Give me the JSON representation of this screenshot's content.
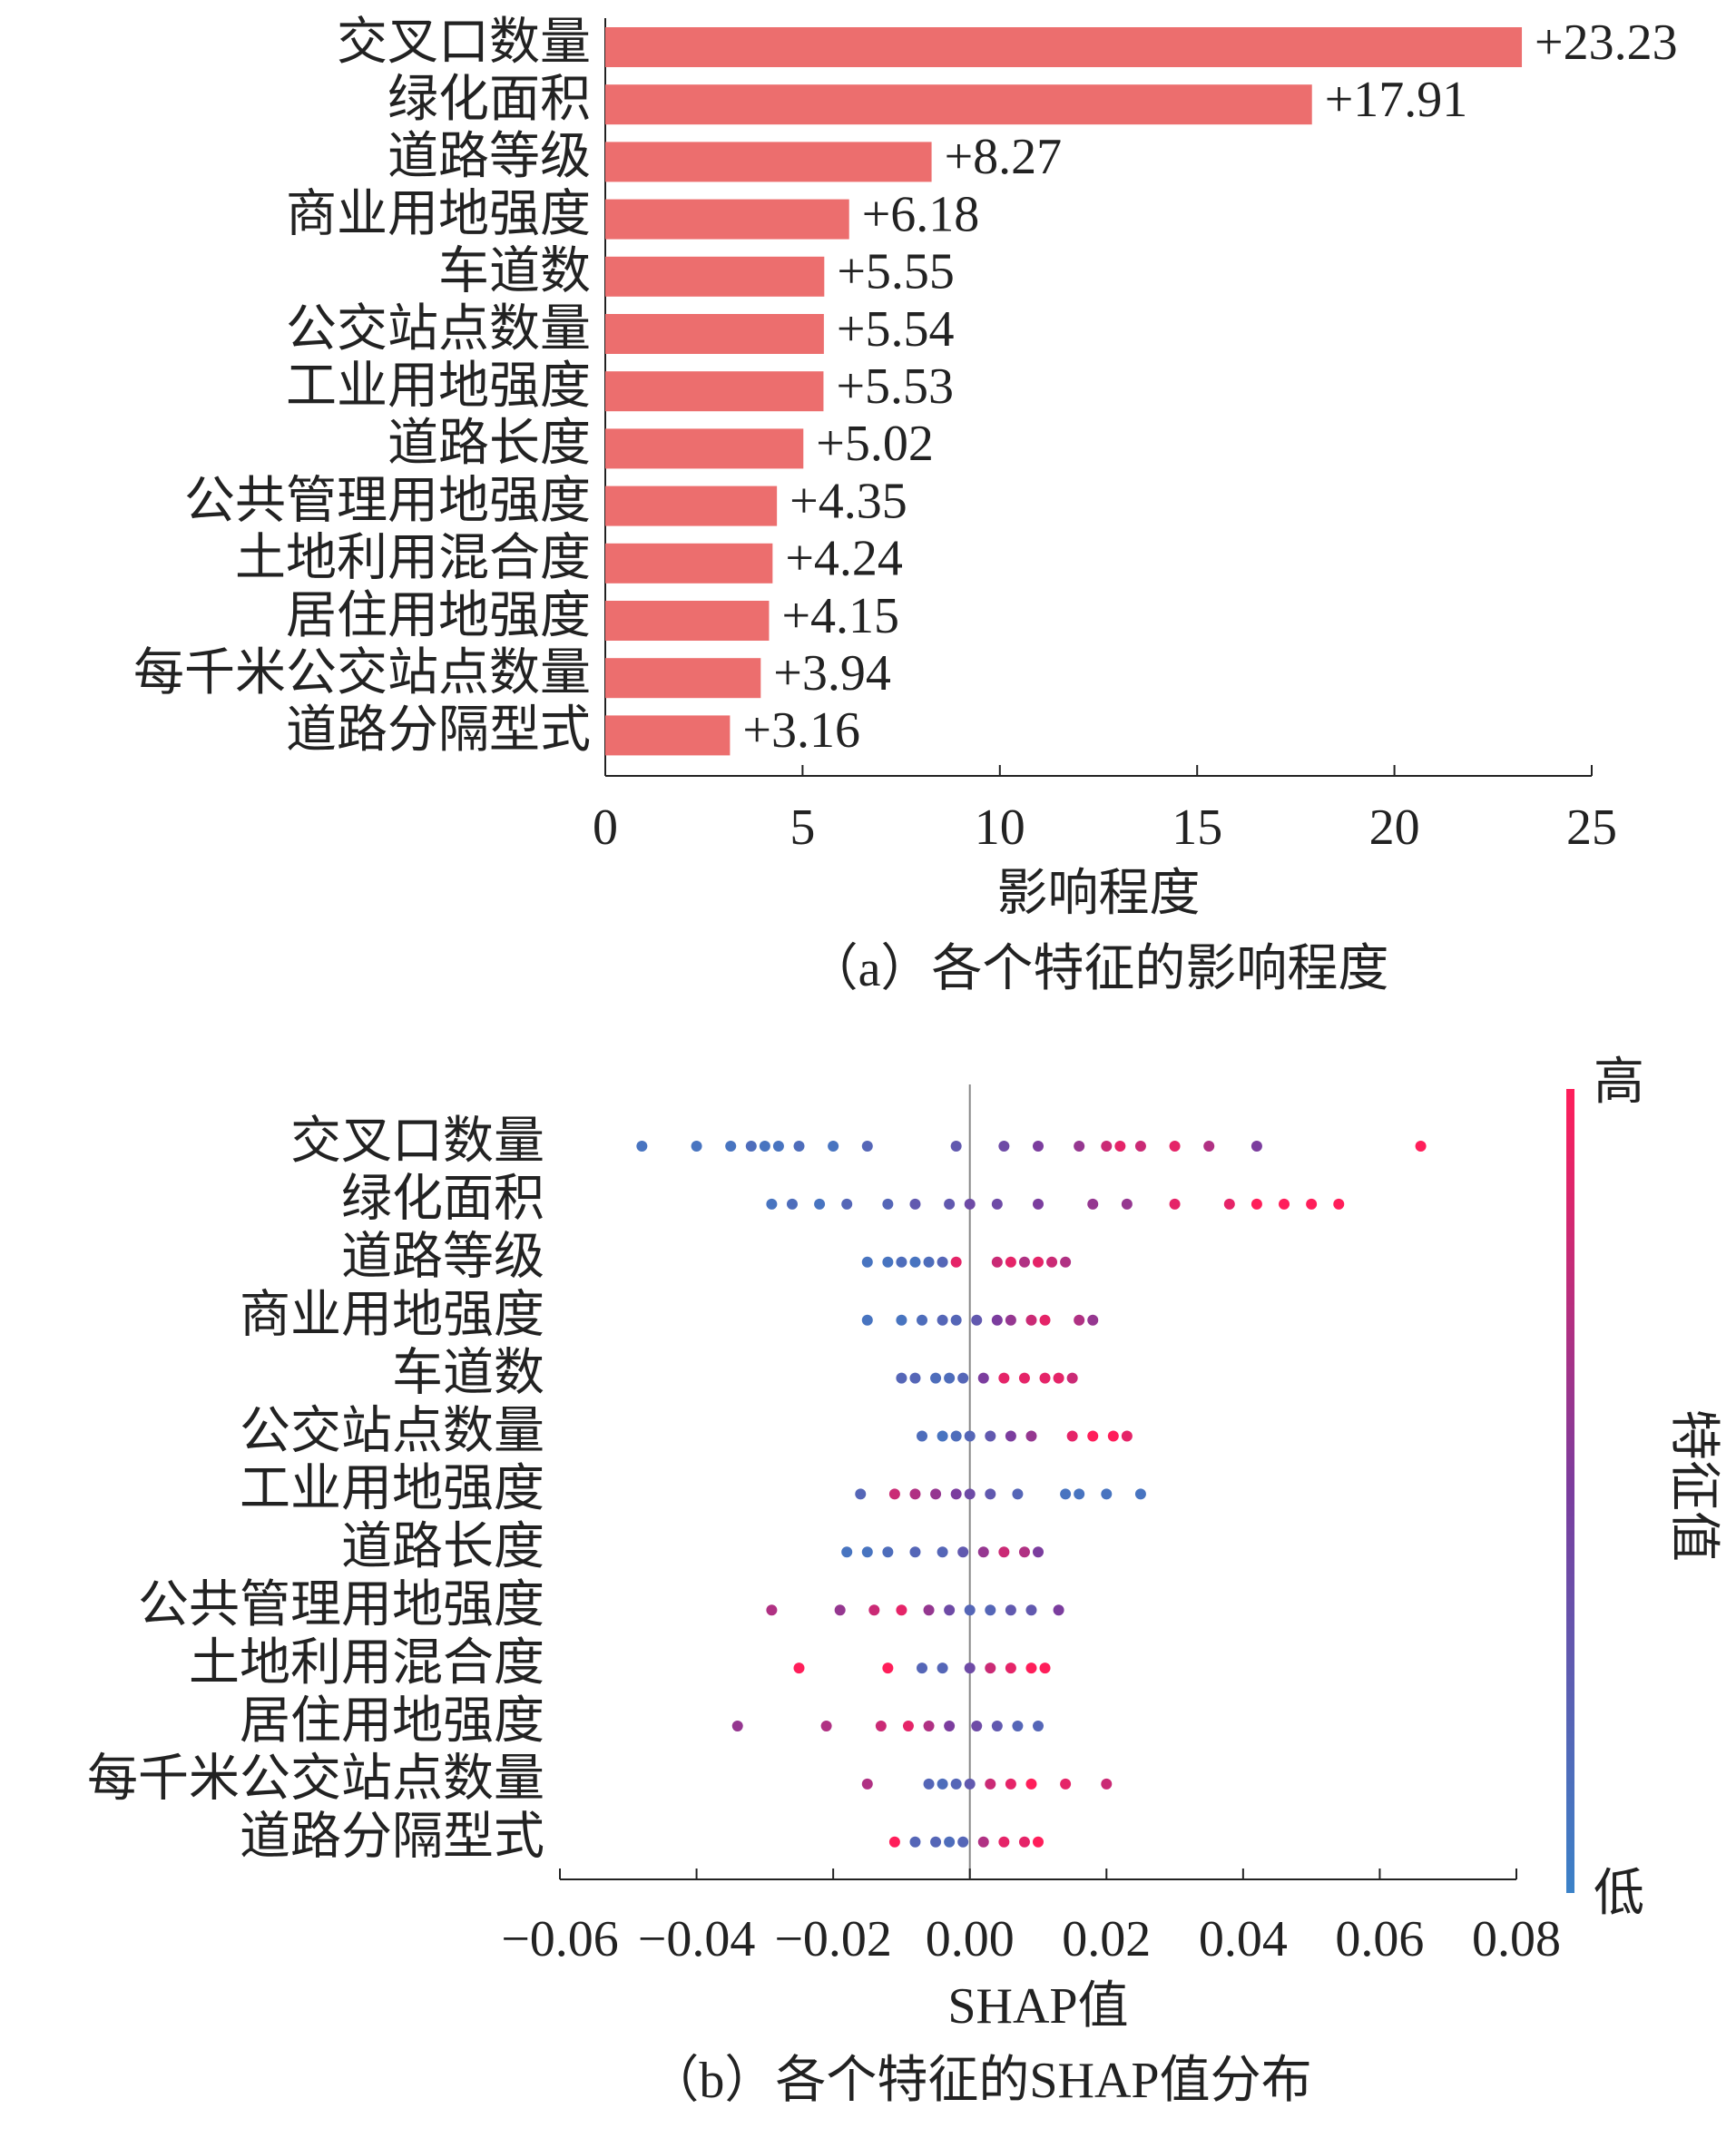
{
  "chart_data": [
    {
      "type": "bar",
      "orientation": "horizontal",
      "categories": [
        "交叉口数量",
        "绿化面积",
        "道路等级",
        "商业用地强度",
        "车道数",
        "公交站点数量",
        "工业用地强度",
        "道路长度",
        "公共管理用地强度",
        "土地利用混合度",
        "居住用地强度",
        "每千米公交站点数量",
        "道路分隔型式"
      ],
      "values": [
        23.23,
        17.91,
        8.27,
        6.18,
        5.55,
        5.54,
        5.53,
        5.02,
        4.35,
        4.24,
        4.15,
        3.94,
        3.16
      ],
      "value_labels": [
        "+23.23",
        "+17.91",
        "+8.27",
        "+6.18",
        "+5.55",
        "+5.54",
        "+5.53",
        "+5.02",
        "+4.35",
        "+4.24",
        "+4.15",
        "+3.94",
        "+3.16"
      ],
      "color": "#ec6e6e",
      "xlim": [
        0,
        25
      ],
      "xticks": [
        0,
        5,
        10,
        15,
        20,
        25
      ],
      "xlabel": "影响程度",
      "caption": "（a）各个特征的影响程度"
    },
    {
      "type": "beeswarm",
      "categories": [
        "交叉口数量",
        "绿化面积",
        "道路等级",
        "商业用地强度",
        "车道数",
        "公交站点数量",
        "工业用地强度",
        "道路长度",
        "公共管理用地强度",
        "土地利用混合度",
        "居住用地强度",
        "每千米公交站点数量",
        "道路分隔型式"
      ],
      "values": [
        [
          -0.048,
          -0.04,
          -0.035,
          -0.032,
          -0.03,
          -0.028,
          -0.025,
          -0.02,
          -0.015,
          -0.002,
          0.005,
          0.01,
          0.016,
          0.02,
          0.022,
          0.025,
          0.03,
          0.035,
          0.042,
          0.066
        ],
        [
          -0.029,
          -0.026,
          -0.022,
          -0.018,
          -0.012,
          -0.008,
          -0.003,
          0,
          0.004,
          0.01,
          0.018,
          0.023,
          0.03,
          0.038,
          0.042,
          0.046,
          0.05,
          0.054
        ],
        [
          -0.015,
          -0.012,
          -0.01,
          -0.008,
          -0.006,
          -0.004,
          -0.002,
          0.004,
          0.006,
          0.008,
          0.01,
          0.012,
          0.014
        ],
        [
          -0.015,
          -0.01,
          -0.007,
          -0.004,
          -0.002,
          0.001,
          0.004,
          0.006,
          0.009,
          0.011,
          0.016,
          0.018
        ],
        [
          -0.01,
          -0.008,
          -0.005,
          -0.003,
          -0.001,
          0.002,
          0.005,
          0.008,
          0.011,
          0.013,
          0.015
        ],
        [
          -0.007,
          -0.004,
          -0.002,
          0,
          0.003,
          0.006,
          0.009,
          0.015,
          0.018,
          0.021,
          0.023
        ],
        [
          -0.016,
          -0.011,
          -0.008,
          -0.005,
          -0.002,
          0,
          0.003,
          0.007,
          0.014,
          0.016,
          0.02,
          0.025
        ],
        [
          -0.018,
          -0.015,
          -0.012,
          -0.008,
          -0.004,
          -0.001,
          0.002,
          0.005,
          0.008,
          0.01
        ],
        [
          -0.029,
          -0.019,
          -0.014,
          -0.01,
          -0.006,
          -0.003,
          0,
          0.003,
          0.006,
          0.009,
          0.013
        ],
        [
          -0.025,
          -0.012,
          -0.007,
          -0.004,
          0,
          0.003,
          0.006,
          0.009,
          0.011
        ],
        [
          -0.034,
          -0.021,
          -0.013,
          -0.009,
          -0.006,
          -0.003,
          0.001,
          0.004,
          0.007,
          0.01
        ],
        [
          -0.015,
          -0.006,
          -0.004,
          -0.002,
          0,
          0.003,
          0.006,
          0.009,
          0.014,
          0.02
        ],
        [
          -0.011,
          -0.008,
          -0.005,
          -0.003,
          -0.001,
          0.002,
          0.005,
          0.008,
          0.01
        ]
      ],
      "feature_values": [
        [
          0.1,
          0.1,
          0.1,
          0.15,
          0.1,
          0.1,
          0.15,
          0.1,
          0.2,
          0.3,
          0.4,
          0.5,
          0.6,
          0.8,
          0.9,
          0.8,
          0.9,
          0.7,
          0.5,
          1
        ],
        [
          0.1,
          0.15,
          0.1,
          0.2,
          0.2,
          0.3,
          0.3,
          0.4,
          0.4,
          0.5,
          0.6,
          0.6,
          0.9,
          0.9,
          1,
          1,
          1,
          1
        ],
        [
          0.1,
          0.1,
          0.15,
          0.1,
          0.15,
          0.2,
          0.9,
          0.8,
          0.9,
          0.7,
          0.9,
          0.8,
          0.7
        ],
        [
          0.1,
          0.1,
          0.15,
          0.2,
          0.2,
          0.3,
          0.5,
          0.6,
          0.8,
          0.9,
          0.7,
          0.6
        ],
        [
          0.2,
          0.2,
          0.15,
          0.15,
          0.2,
          0.5,
          0.9,
          0.9,
          0.9,
          0.9,
          0.8
        ],
        [
          0.15,
          0.1,
          0.15,
          0.2,
          0.3,
          0.5,
          0.6,
          0.9,
          1,
          1,
          0.9
        ],
        [
          0.2,
          0.8,
          0.7,
          0.6,
          0.5,
          0.4,
          0.3,
          0.2,
          0.1,
          0.1,
          0.1,
          0.1
        ],
        [
          0.1,
          0.1,
          0.15,
          0.2,
          0.2,
          0.3,
          0.6,
          0.8,
          0.7,
          0.5
        ],
        [
          0.7,
          0.6,
          0.8,
          0.9,
          0.6,
          0.4,
          0.2,
          0.2,
          0.3,
          0.3,
          0.5
        ],
        [
          1,
          1,
          0.2,
          0.2,
          0.4,
          0.8,
          0.9,
          1,
          1
        ],
        [
          0.6,
          0.7,
          0.8,
          0.9,
          0.7,
          0.5,
          0.4,
          0.3,
          0.2,
          0.2
        ],
        [
          0.7,
          0.2,
          0.15,
          0.2,
          0.3,
          0.8,
          0.9,
          1,
          0.9,
          0.8
        ],
        [
          1,
          0.2,
          0.2,
          0.15,
          0.2,
          0.7,
          0.9,
          0.9,
          1
        ]
      ],
      "colormap": [
        "#3b82c8",
        "#7b3d9e",
        "#ff1e5a"
      ],
      "xlim": [
        -0.06,
        0.08
      ],
      "xticks": [
        {
          "value": -0.06,
          "label": "−0.06"
        },
        {
          "value": -0.04,
          "label": "−0.04"
        },
        {
          "value": -0.02,
          "label": "−0.02"
        },
        {
          "value": 0,
          "label": "0.00"
        },
        0.02,
        0.04,
        0.06,
        0.08
      ],
      "xlabel": "SHAP值",
      "colorbar_high": "高",
      "colorbar_low": "低",
      "colorbar_label": "特征值",
      "caption": "（b）各个特征的SHAP值分布"
    }
  ]
}
